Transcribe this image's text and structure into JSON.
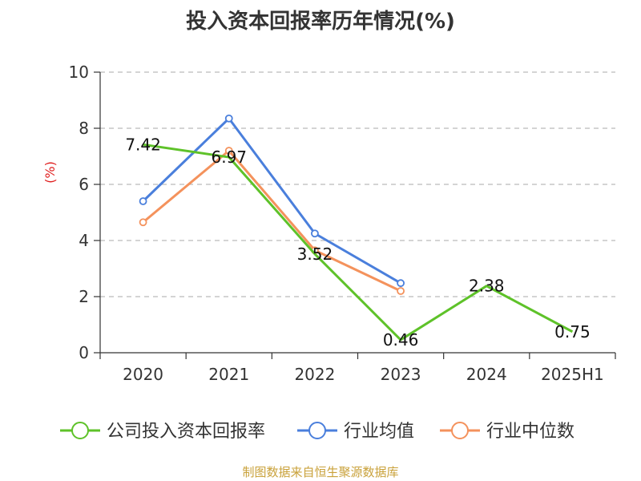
{
  "chart_data": {
    "type": "line",
    "title": "投入资本回报率历年情况(%)",
    "ylabel": "(%)",
    "ylim": [
      0,
      10
    ],
    "yticks": [
      0,
      2,
      4,
      6,
      8,
      10
    ],
    "grid": true,
    "legend_position": "bottom",
    "categories": [
      "2020",
      "2021",
      "2022",
      "2023",
      "2024",
      "2025H1"
    ],
    "series": [
      {
        "name": "公司投入资本回报率",
        "color": "#5ec229",
        "values": [
          7.42,
          6.97,
          3.52,
          0.46,
          2.38,
          0.75
        ],
        "labels": [
          "7.42",
          "6.97",
          "3.52",
          "0.46",
          "2.38",
          "0.75"
        ],
        "markers": false
      },
      {
        "name": "行业均值",
        "color": "#4a7fdc",
        "values": [
          5.4,
          8.35,
          4.25,
          2.48,
          null,
          null
        ],
        "markers": true
      },
      {
        "name": "行业中位数",
        "color": "#f4925c",
        "values": [
          4.65,
          7.2,
          3.65,
          2.2,
          null,
          null
        ],
        "markers": true
      }
    ]
  },
  "source": "制图数据来自恒生聚源数据库"
}
